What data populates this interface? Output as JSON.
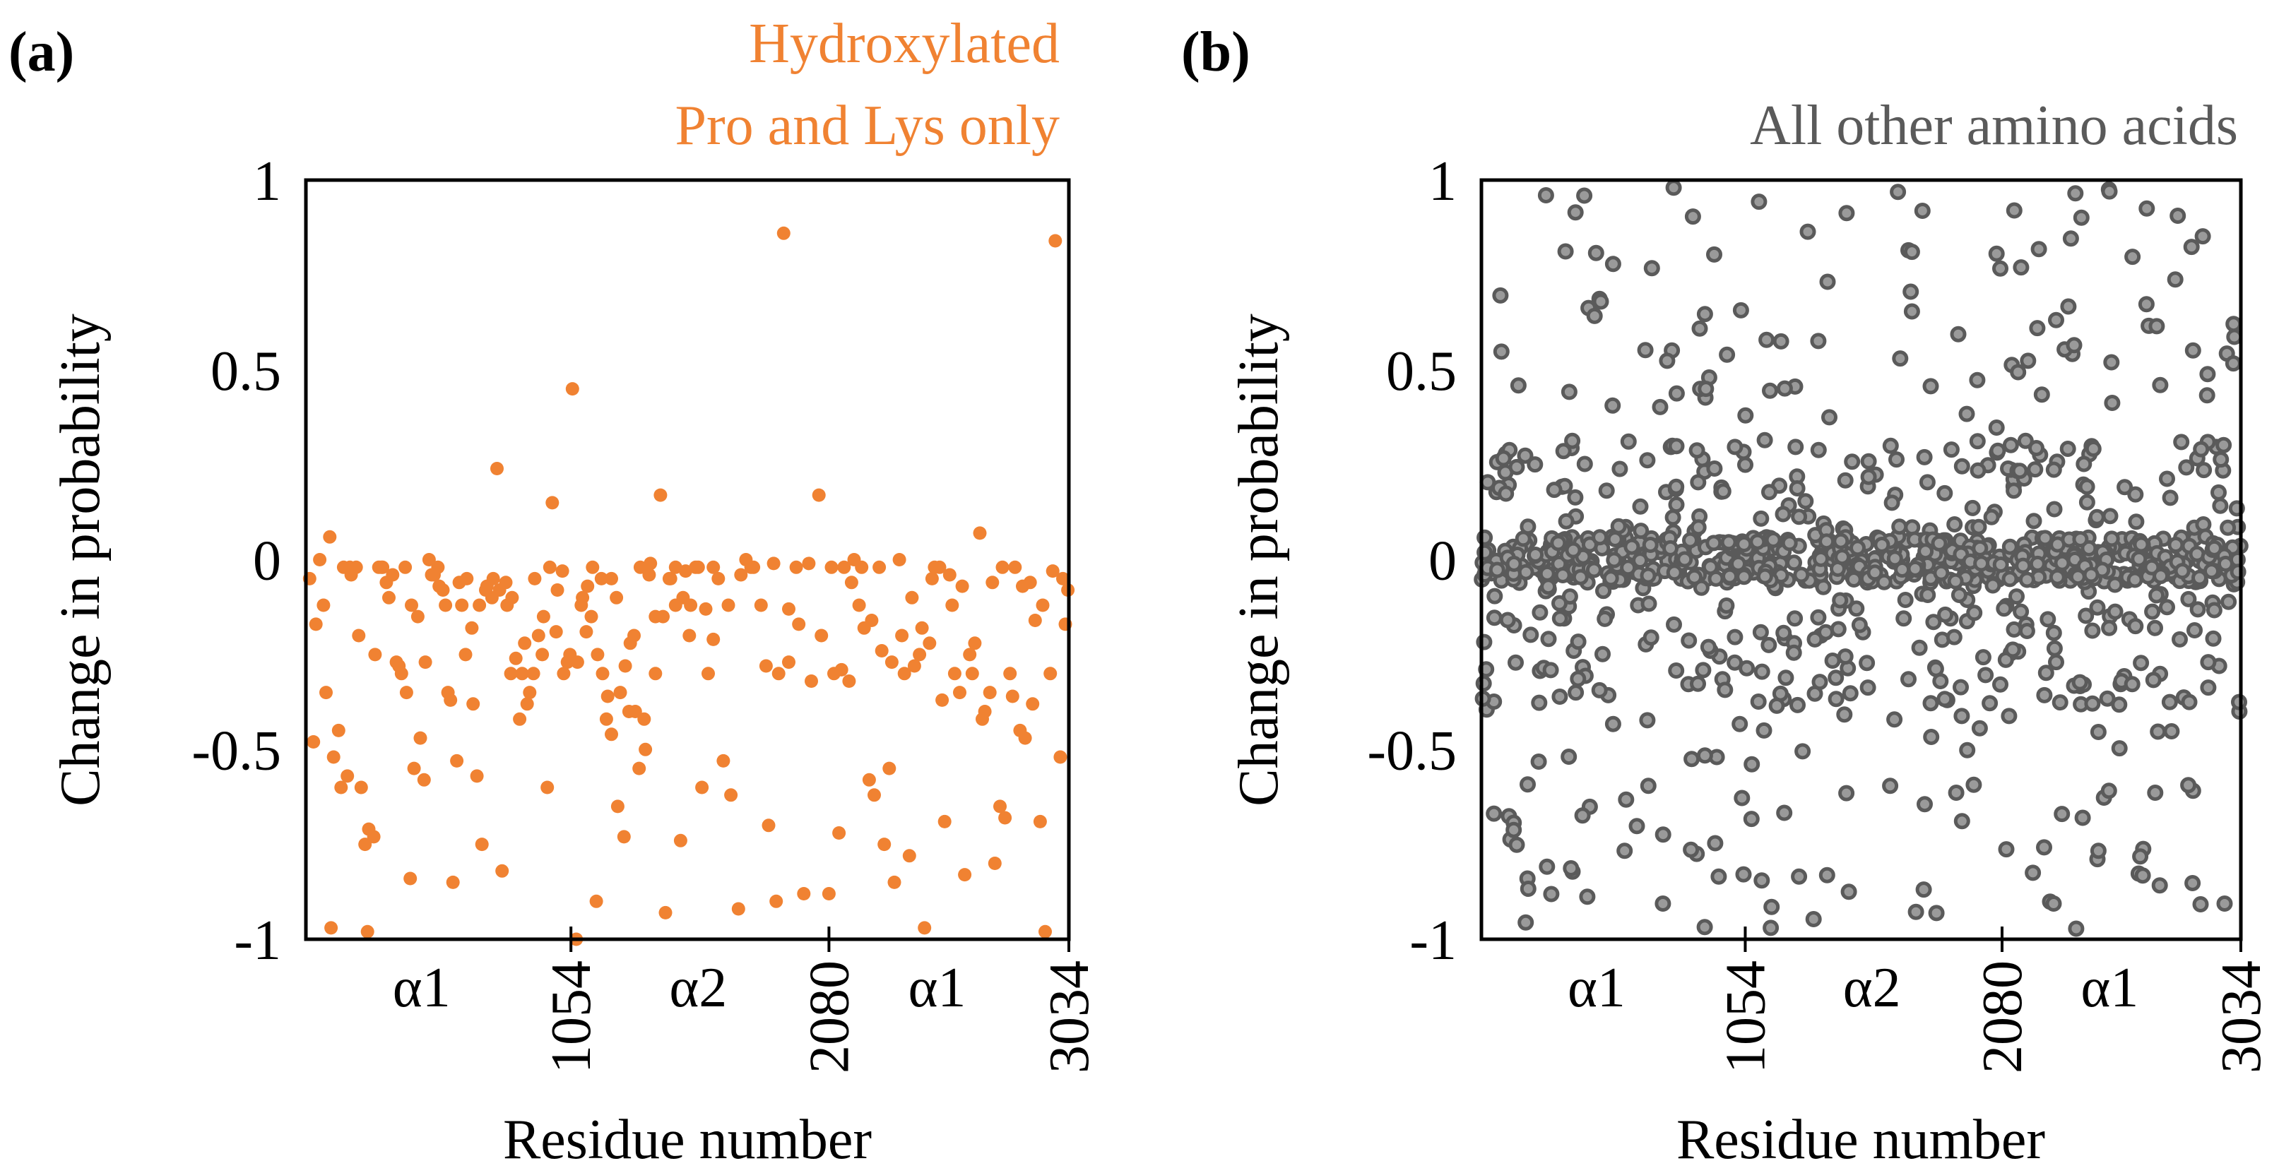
{
  "colors": {
    "orange": "#F08232",
    "gray_fill": "#9A9A9A",
    "gray_stroke": "#5A5A5A",
    "gray_title": "#5A5A5A"
  },
  "chart_data": [
    {
      "type": "scatter",
      "panel_label": "(a)",
      "title_lines": [
        "Hydroxylated",
        "Pro and Lys only"
      ],
      "xlabel": "Residue number",
      "ylabel": "Change in probability",
      "xlim": [
        0,
        3034
      ],
      "ylim": [
        -1,
        1
      ],
      "yticks": [
        {
          "value": 1,
          "label": "1"
        },
        {
          "value": 0.5,
          "label": "0.5"
        },
        {
          "value": 0,
          "label": "0"
        },
        {
          "value": -0.5,
          "label": "-0.5"
        },
        {
          "value": -1,
          "label": "-1"
        }
      ],
      "xticks": [
        {
          "value": 1054,
          "label": "1054"
        },
        {
          "value": 2080,
          "label": "2080"
        },
        {
          "value": 3034,
          "label": "3034"
        }
      ],
      "regions": [
        {
          "value": 460,
          "label": "α1"
        },
        {
          "value": 1560,
          "label": "α2"
        },
        {
          "value": 2510,
          "label": "α1"
        }
      ],
      "series": [
        {
          "name": "Hydroxylated Pro and Lys only",
          "color": "#F08232",
          "x": [],
          "y": []
        }
      ]
    },
    {
      "type": "scatter",
      "panel_label": "(b)",
      "title_lines": [
        "All other amino acids"
      ],
      "xlabel": "Residue number",
      "ylabel": "Change in probability",
      "xlim": [
        0,
        3034
      ],
      "ylim": [
        -1,
        1
      ],
      "yticks": [
        {
          "value": 1,
          "label": "1"
        },
        {
          "value": 0.5,
          "label": "0.5"
        },
        {
          "value": 0,
          "label": "0"
        },
        {
          "value": -0.5,
          "label": "-0.5"
        },
        {
          "value": -1,
          "label": "-1"
        }
      ],
      "xticks": [
        {
          "value": 1054,
          "label": "1054"
        },
        {
          "value": 2080,
          "label": "2080"
        },
        {
          "value": 3034,
          "label": "3034"
        }
      ],
      "regions": [
        {
          "value": 460,
          "label": "α1"
        },
        {
          "value": 1560,
          "label": "α2"
        },
        {
          "value": 2510,
          "label": "α1"
        }
      ],
      "series": [
        {
          "name": "All other amino acids",
          "color": "#9A9A9A",
          "x": [],
          "y": []
        }
      ]
    }
  ]
}
